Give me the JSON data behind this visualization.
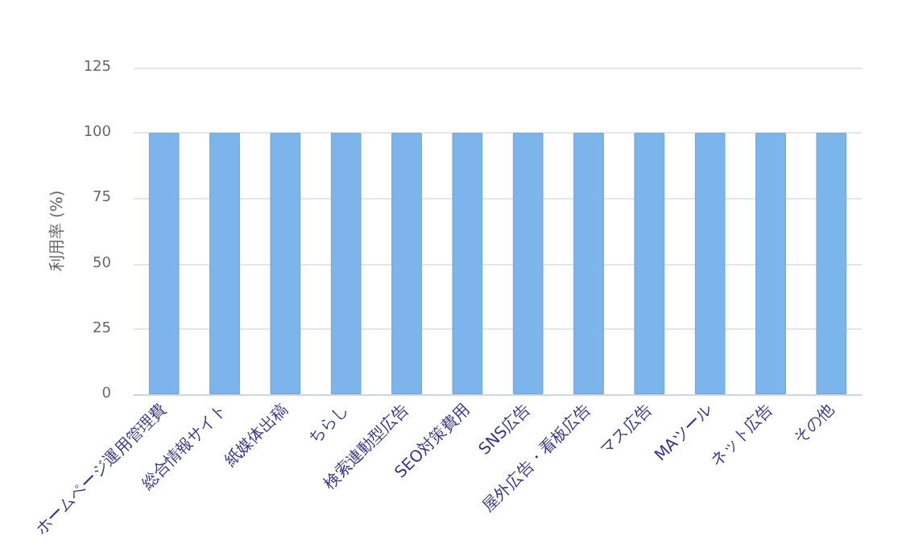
{
  "chart_data": {
    "type": "bar",
    "ylabel": "利用率 (%)",
    "categories": [
      "ホームページ運用管理費",
      "総合情報サイト",
      "紙媒体出稿",
      "ちらし",
      "検索連動型広告",
      "SEO対策費用",
      "SNS広告",
      "屋外広告・看板広告",
      "マス広告",
      "MAツール",
      "ネット広告",
      "その他"
    ],
    "values": [
      100,
      100,
      100,
      100,
      100,
      100,
      100,
      100,
      100,
      100,
      100,
      100
    ],
    "color": "#7cb5ec",
    "ylim": [
      0,
      125
    ],
    "yticks": [
      0,
      25,
      50,
      75,
      100,
      125
    ],
    "grid": "y"
  }
}
